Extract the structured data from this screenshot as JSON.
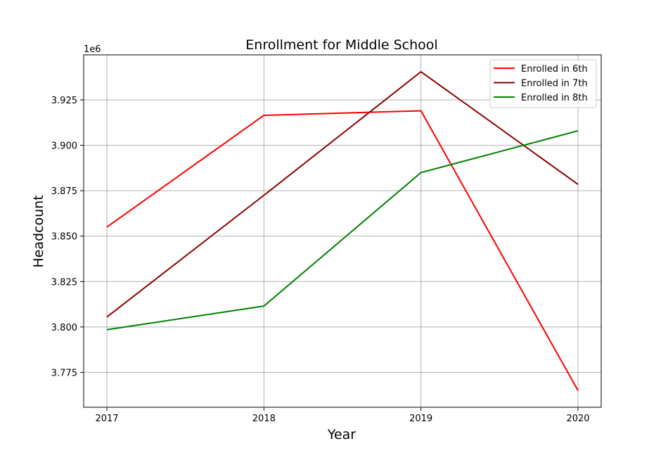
{
  "chart_data": {
    "type": "line",
    "title": "Enrollment for Middle School",
    "xlabel": "Year",
    "ylabel": "Headcount",
    "y_offset_label": "1e6",
    "x": [
      "2017",
      "2018",
      "2019",
      "2020"
    ],
    "series": [
      {
        "name": "Enrolled in 6th",
        "color": "#ff0000",
        "values": [
          3.855,
          3.9165,
          3.919,
          3.765
        ]
      },
      {
        "name": "Enrolled in 7th",
        "color": "#8b0000",
        "values": [
          3.8055,
          3.8725,
          3.9405,
          3.8785
        ]
      },
      {
        "name": "Enrolled in 8th",
        "color": "#008000",
        "values": [
          3.7985,
          3.8115,
          3.885,
          3.908
        ]
      }
    ],
    "yticks": [
      "3.775",
      "3.800",
      "3.825",
      "3.850",
      "3.875",
      "3.900",
      "3.925"
    ],
    "ylim": [
      3.7558,
      3.9498
    ],
    "grid": true,
    "legend_position": "top-right"
  }
}
